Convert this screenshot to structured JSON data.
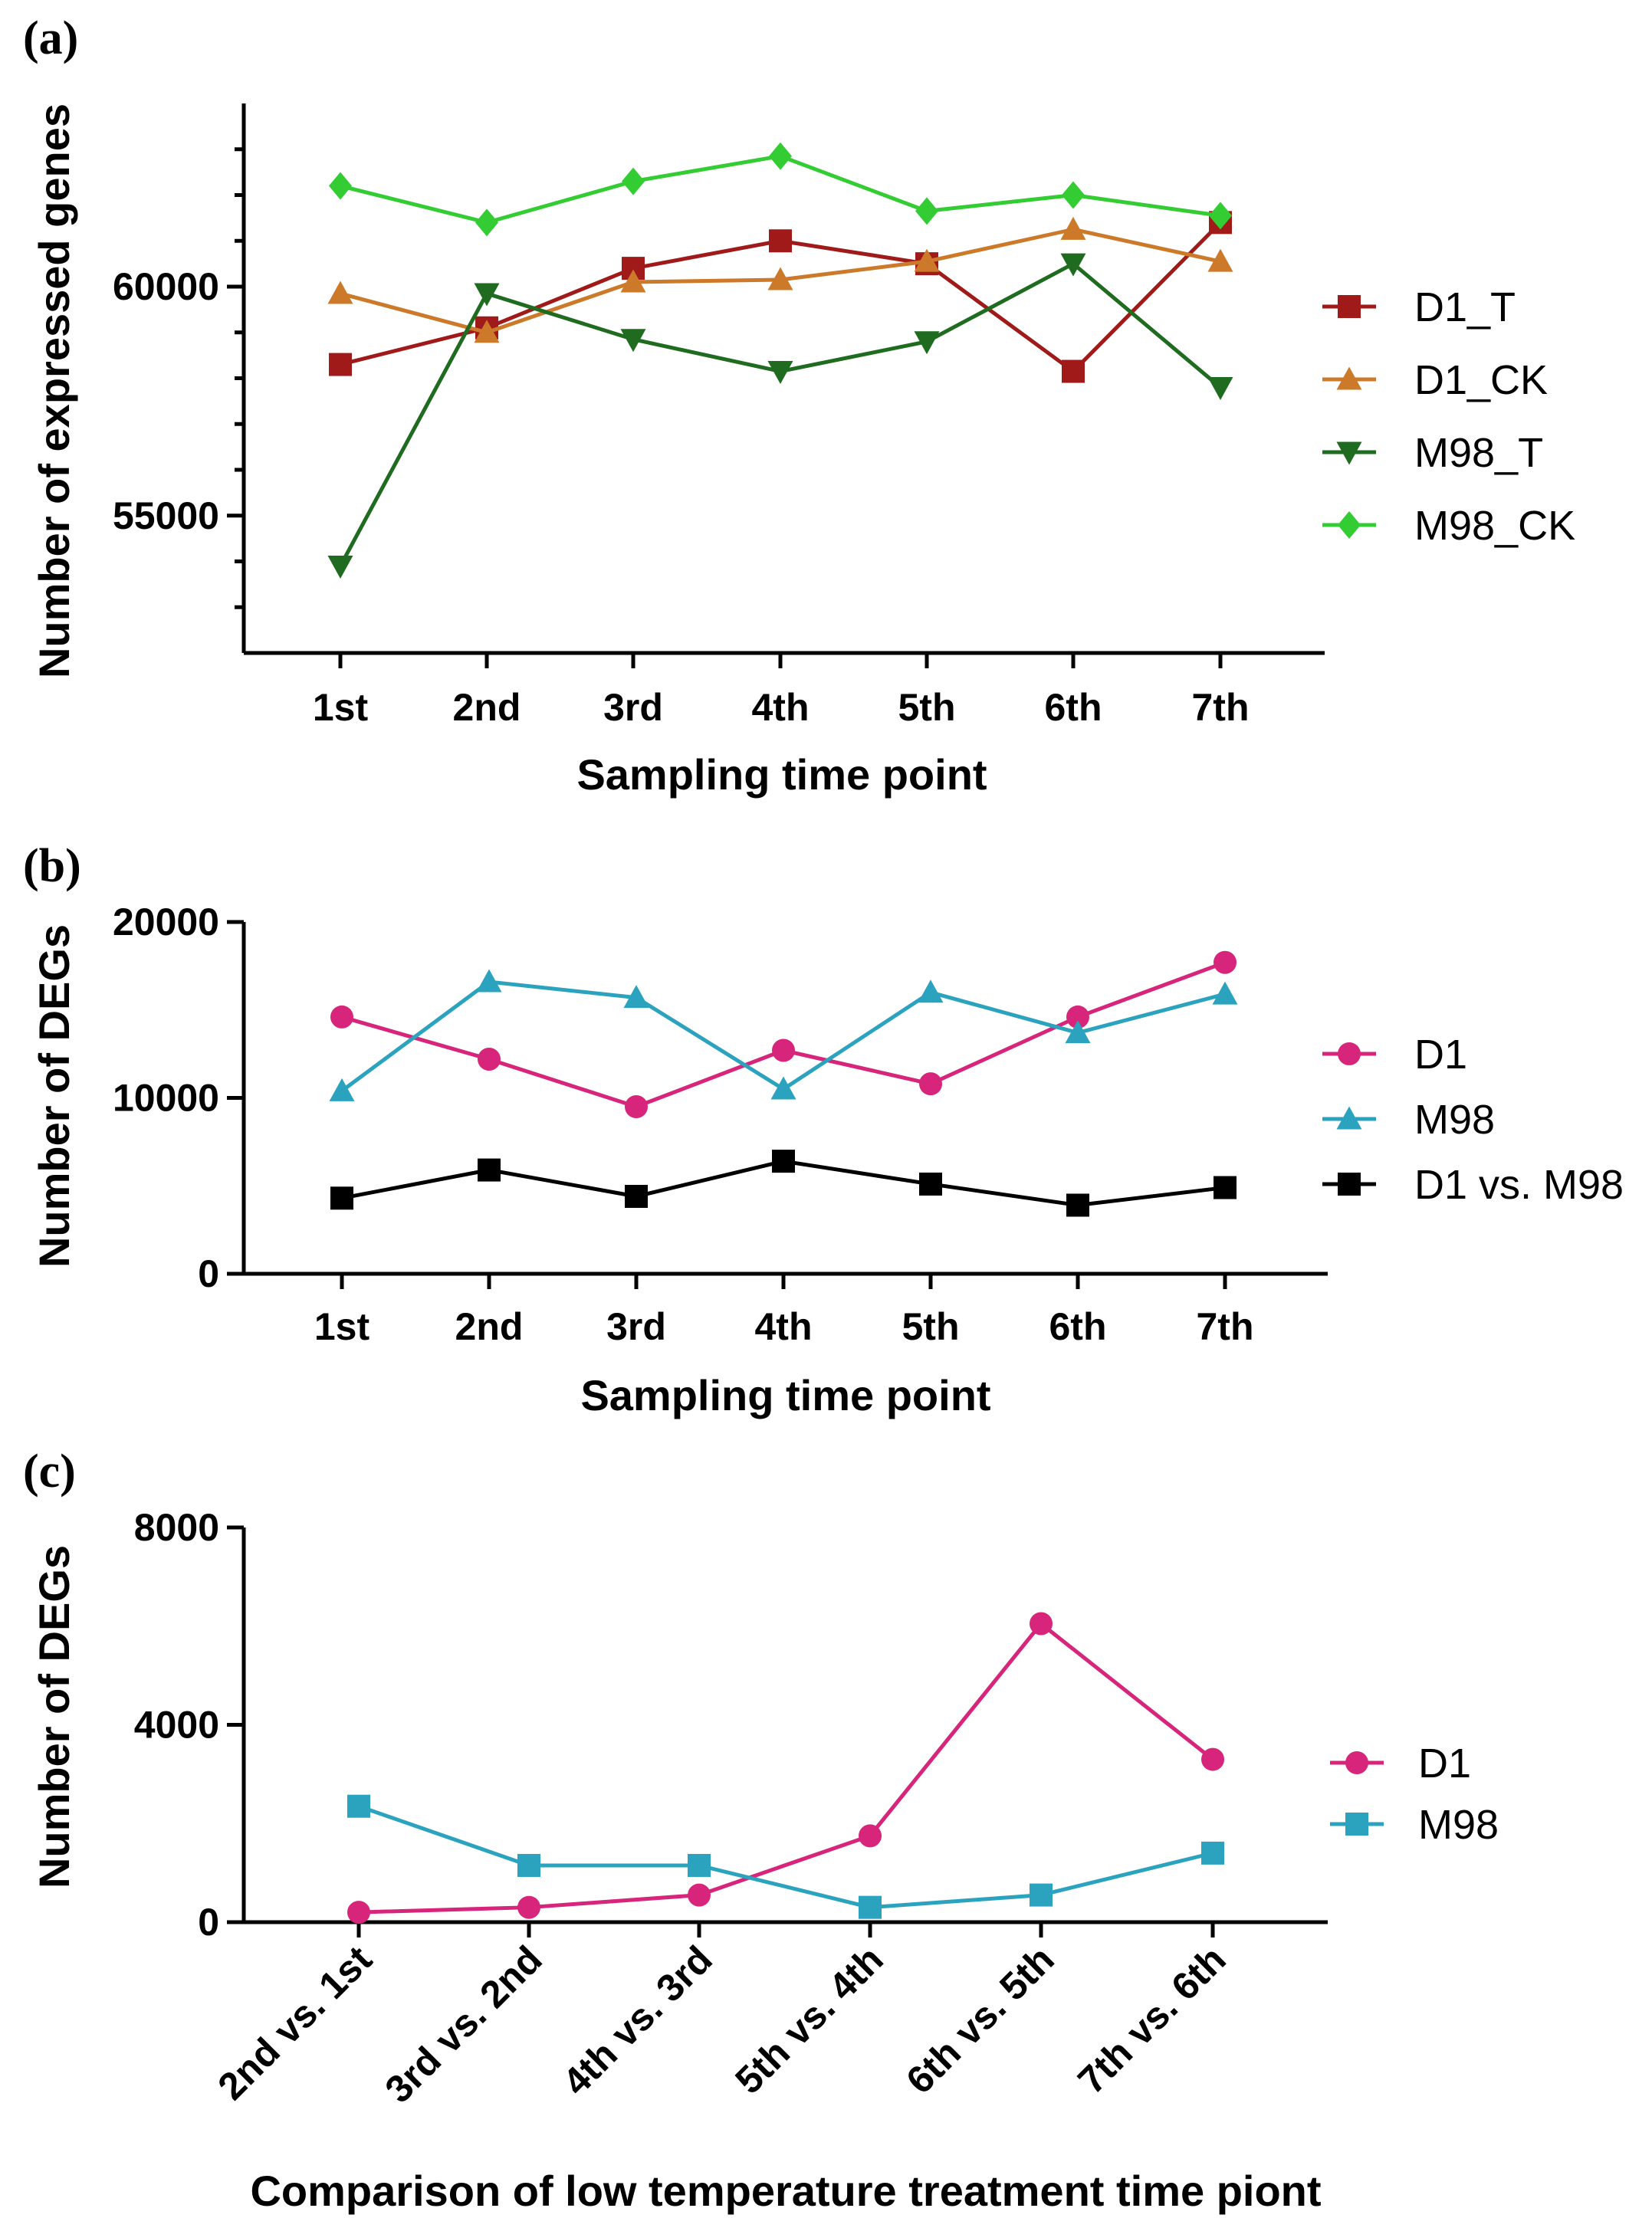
{
  "chart_data": [
    {
      "panel": "(a)",
      "type": "line",
      "categories": [
        "1st",
        "2nd",
        "3rd",
        "4th",
        "5th",
        "6th",
        "7th"
      ],
      "xlabel": "Sampling time point",
      "ylabel": "Number of expressed genes",
      "ylim": [
        52000,
        64000
      ],
      "yticks": [
        55000,
        60000
      ],
      "yminor": [
        53000,
        54000,
        56000,
        57000,
        58000,
        59000,
        61000,
        62000,
        63000
      ],
      "tick_labels": [
        "55000",
        "60000"
      ],
      "series": [
        {
          "name": "D1_T",
          "color": "#a01a1a",
          "marker": "square",
          "values": [
            58300,
            59100,
            60400,
            61000,
            60500,
            58150,
            61400
          ]
        },
        {
          "name": "D1_CK",
          "color": "#cc7a29",
          "marker": "triangle-up",
          "values": [
            59850,
            59000,
            60100,
            60150,
            60550,
            61250,
            60550
          ]
        },
        {
          "name": "M98_T",
          "color": "#1f6b1f",
          "marker": "triangle-down",
          "values": [
            53900,
            59850,
            58850,
            58150,
            58800,
            60500,
            57800
          ]
        },
        {
          "name": "M98_CK",
          "color": "#33cc33",
          "marker": "diamond",
          "values": [
            62200,
            61400,
            62300,
            62850,
            61650,
            62000,
            61550
          ]
        }
      ]
    },
    {
      "panel": "(b)",
      "type": "line",
      "categories": [
        "1st",
        "2nd",
        "3rd",
        "4th",
        "5th",
        "6th",
        "7th"
      ],
      "xlabel": "Sampling time point",
      "ylabel": "Number of DEGs",
      "ylim": [
        0,
        20000
      ],
      "yticks": [
        0,
        10000,
        20000
      ],
      "tick_labels": [
        "0",
        "10000",
        "20000"
      ],
      "series": [
        {
          "name": "D1",
          "color": "#d6257a",
          "marker": "circle",
          "values": [
            14600,
            12200,
            9500,
            12700,
            10800,
            14600,
            17700
          ]
        },
        {
          "name": "M98",
          "color": "#2ba3bf",
          "marker": "triangle-up",
          "values": [
            10400,
            16600,
            15700,
            10500,
            16000,
            13700,
            15900
          ]
        },
        {
          "name": "D1 vs. M98",
          "color": "#000000",
          "marker": "square",
          "values": [
            4300,
            5900,
            4400,
            6400,
            5100,
            3900,
            4900
          ]
        }
      ]
    },
    {
      "panel": "(c)",
      "type": "line",
      "categories": [
        "2nd vs. 1st",
        "3rd vs. 2nd",
        "4th vs. 3rd",
        "5th vs. 4th",
        "6th vs. 5th",
        "7th vs. 6th"
      ],
      "xlabel": "Comparison of low temperature treatment time piont",
      "ylabel": "Number of DEGs",
      "ylim": [
        0,
        8000
      ],
      "yticks": [
        0,
        4000,
        8000
      ],
      "tick_labels": [
        "0",
        "4000",
        "8000"
      ],
      "series": [
        {
          "name": "D1",
          "color": "#d6257a",
          "marker": "circle",
          "values": [
            200,
            300,
            550,
            1750,
            6050,
            3300
          ]
        },
        {
          "name": "M98",
          "color": "#2ba3bf",
          "marker": "square",
          "values": [
            2350,
            1150,
            1150,
            300,
            550,
            1400
          ]
        }
      ]
    }
  ]
}
